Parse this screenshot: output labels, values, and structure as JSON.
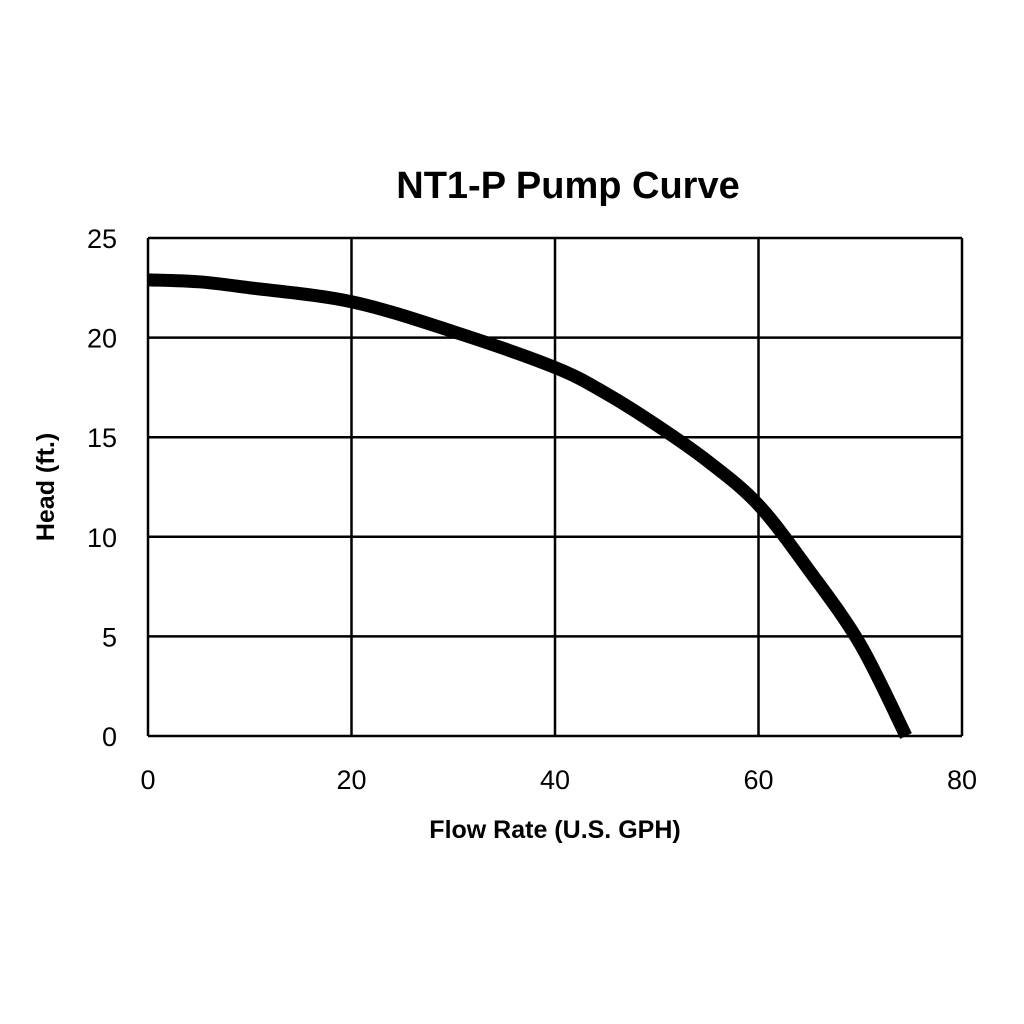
{
  "chart_data": {
    "type": "line",
    "title": "NT1-P Pump Curve",
    "xlabel": "Flow Rate (U.S. GPH)",
    "ylabel": "Head (ft.)",
    "xlim": [
      0,
      80
    ],
    "ylim": [
      0,
      25
    ],
    "xticks": [
      "0",
      "20",
      "40",
      "60",
      "80"
    ],
    "yticks": [
      "0",
      "5",
      "10",
      "15",
      "20",
      "25"
    ],
    "grid": true,
    "legend": "none",
    "line_color": "#000000",
    "series": [
      {
        "x": [
          0,
          5,
          10,
          20,
          30,
          40,
          45,
          50,
          55,
          60,
          65,
          70,
          74.5
        ],
        "y": [
          22.9,
          22.8,
          22.5,
          21.8,
          20.3,
          18.5,
          17.2,
          15.6,
          13.8,
          11.6,
          8.3,
          4.6,
          0
        ]
      }
    ]
  }
}
